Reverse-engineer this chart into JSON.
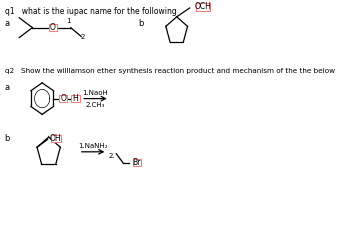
{
  "bg_color": "#ffffff",
  "q1_text": "q1   what is the iupac name for the following",
  "q2_text": "q2   Show the williamson ether synthesis reaction product and mechanism of the the below",
  "label_a1": "a",
  "label_b1": "b",
  "label_a2": "a",
  "label_b2": "b",
  "num1": "1",
  "num2": "2",
  "och_label": "OCH",
  "naoh_text": "1.NaoH",
  "ch3_text": "2.CH₃",
  "nanh2_text": "1.NaNH₂",
  "br_struct": "2.",
  "oh_label": "OH",
  "o_label": "O",
  "h_label": "H",
  "br_label": "Br",
  "line_color": "#000000",
  "box_color": "#f08080",
  "text_color": "#000000"
}
